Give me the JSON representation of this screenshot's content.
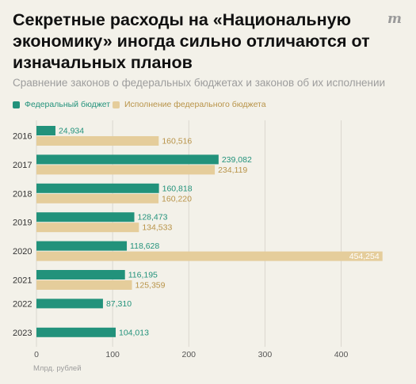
{
  "title": "Секретные расходы на «Национальную экономику» иногда сильно отличаются от изначальных планов",
  "subtitle": "Сравнение законов о федеральных бюджетах и законов об их исполнении",
  "logo": "m",
  "colors": {
    "background": "#f3f1e9",
    "budget": "#22927b",
    "execution": "#e5cd9b",
    "budget_label": "#22927b",
    "execution_label": "#b89348",
    "grid": "#dad7cf",
    "text": "#111111",
    "muted": "#9d9d9d"
  },
  "chart_data": {
    "type": "bar",
    "orientation": "horizontal",
    "categories": [
      "2016",
      "2017",
      "2018",
      "2019",
      "2020",
      "2021",
      "2022",
      "2023"
    ],
    "series": [
      {
        "name": "Федеральный бюджет",
        "values": [
          24.934,
          239.082,
          160.818,
          128.473,
          118.628,
          116.195,
          87.31,
          104.013
        ],
        "labels": [
          "24,934",
          "239,082",
          "160,818",
          "128,473",
          "118,628",
          "116,195",
          "87,310",
          "104,013"
        ]
      },
      {
        "name": "Исполнение федерального бюджета",
        "values": [
          160.516,
          234.119,
          160.22,
          134.533,
          454.254,
          125.359,
          null,
          null
        ],
        "labels": [
          "160,516",
          "234,119",
          "160,220",
          "134,533",
          "454,254",
          "125,359",
          "",
          ""
        ]
      }
    ],
    "xlabel": "Млрд. рублей",
    "xlim": [
      0,
      460
    ],
    "xticks": [
      0,
      100,
      200,
      300,
      400
    ],
    "xtick_labels": [
      "0",
      "100",
      "200",
      "300",
      "400"
    ],
    "grid": true,
    "legend": "top-left"
  }
}
